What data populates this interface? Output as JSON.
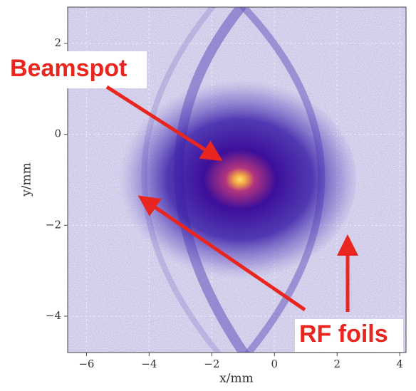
{
  "chart_data": {
    "type": "density",
    "xlabel": "x/mm",
    "ylabel": "y/mm",
    "xlim": [
      -6.6,
      4.2
    ],
    "ylim": [
      -4.8,
      2.8
    ],
    "xticks": [
      {
        "value": -6,
        "label": "−6"
      },
      {
        "value": -4,
        "label": "−4"
      },
      {
        "value": -2,
        "label": "−2"
      },
      0,
      2,
      4
    ],
    "yticks": [
      {
        "value": -4,
        "label": "−4"
      },
      {
        "value": -2,
        "label": "−2"
      },
      0,
      2
    ],
    "grid": true,
    "annotations": [
      "Beamspot",
      "RF foils"
    ]
  }
}
